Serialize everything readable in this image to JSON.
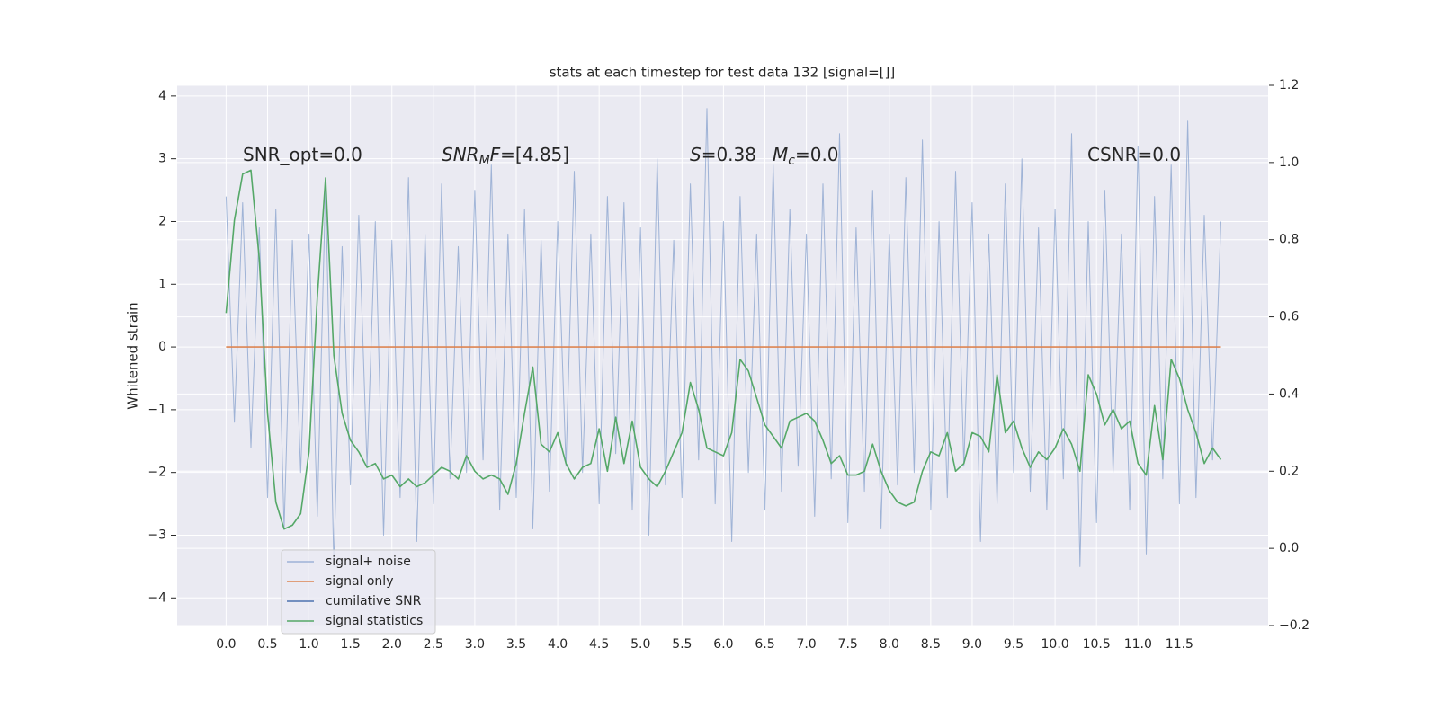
{
  "chart_data": {
    "type": "line",
    "title": "stats at each timestep for test data 132 [signal=[]]",
    "ylabel": "Whitened strain",
    "xlim": [
      -0.59,
      12.57
    ],
    "ylim": [
      -4.44,
      4.17
    ],
    "y2lim": [
      -0.2,
      1.2
    ],
    "xticks": [
      {
        "value": 0,
        "label": "0.0"
      },
      0.5,
      {
        "value": 1,
        "label": "1.0"
      },
      1.5,
      {
        "value": 2,
        "label": "2.0"
      },
      2.5,
      {
        "value": 3,
        "label": "3.0"
      },
      3.5,
      {
        "value": 4,
        "label": "4.0"
      },
      4.5,
      {
        "value": 5,
        "label": "5.0"
      },
      5.5,
      {
        "value": 6,
        "label": "6.0"
      },
      6.5,
      {
        "value": 7,
        "label": "7.0"
      },
      7.5,
      {
        "value": 8,
        "label": "8.0"
      },
      8.5,
      {
        "value": 9,
        "label": "9.0"
      },
      9.5,
      {
        "value": 10,
        "label": "10.0"
      },
      10.5,
      {
        "value": 11,
        "label": "11.0"
      },
      11.5
    ],
    "yticks": [
      {
        "value": -4,
        "label": "−4"
      },
      {
        "value": -3,
        "label": "−3"
      },
      {
        "value": -2,
        "label": "−2"
      },
      {
        "value": -1,
        "label": "−1"
      },
      0,
      1,
      2,
      3,
      4
    ],
    "y2ticks": [
      {
        "value": -0.2,
        "label": "−0.2"
      },
      {
        "value": 0,
        "label": "0.0"
      },
      0.2,
      0.4,
      0.6,
      0.8,
      {
        "value": 1,
        "label": "1.0"
      },
      1.2
    ],
    "grid": true,
    "legend": "lower left",
    "annotations": [
      [
        {
          "text": "SNR_opt=0.0"
        }
      ],
      [
        {
          "text": "SNR",
          "italic": true
        },
        {
          "text": "M",
          "italic": true,
          "sub": true
        },
        {
          "text": "F",
          "italic": true
        },
        {
          "text": "=[4.85]"
        }
      ],
      [
        {
          "text": "S",
          "italic": true
        },
        {
          "text": "=0.38"
        }
      ],
      [
        {
          "text": "M",
          "italic": true
        },
        {
          "text": "c",
          "italic": true,
          "sub": true
        },
        {
          "text": "=0.0"
        }
      ],
      [
        {
          "text": "CSNR=0.0"
        }
      ]
    ],
    "x": [
      0.0,
      0.1,
      0.2,
      0.3,
      0.4,
      0.5,
      0.6,
      0.7,
      0.8,
      0.9,
      1.0,
      1.1,
      1.2,
      1.3,
      1.4,
      1.5,
      1.6,
      1.7,
      1.8,
      1.9,
      2.0,
      2.1,
      2.2,
      2.3,
      2.4,
      2.5,
      2.6,
      2.7,
      2.8,
      2.9,
      3.0,
      3.1,
      3.2,
      3.3,
      3.4,
      3.5,
      3.6,
      3.7,
      3.8,
      3.9,
      4.0,
      4.1,
      4.2,
      4.3,
      4.4,
      4.5,
      4.6,
      4.7,
      4.8,
      4.9,
      5.0,
      5.1,
      5.2,
      5.3,
      5.4,
      5.5,
      5.6,
      5.7,
      5.8,
      5.9,
      6.0,
      6.1,
      6.2,
      6.3,
      6.4,
      6.5,
      6.6,
      6.7,
      6.8,
      6.9,
      7.0,
      7.1,
      7.2,
      7.3,
      7.4,
      7.5,
      7.6,
      7.7,
      7.8,
      7.9,
      8.0,
      8.1,
      8.2,
      8.3,
      8.4,
      8.5,
      8.6,
      8.7,
      8.8,
      8.9,
      9.0,
      9.1,
      9.2,
      9.3,
      9.4,
      9.5,
      9.6,
      9.7,
      9.8,
      9.9,
      10.0,
      10.1,
      10.2,
      10.3,
      10.4,
      10.5,
      10.6,
      10.7,
      10.8,
      10.9,
      11.0,
      11.1,
      11.2,
      11.3,
      11.4,
      11.5,
      11.6,
      11.7,
      11.8,
      11.9,
      12.0
    ],
    "series": [
      {
        "name": "signal+ noise",
        "color": "#7f9bcb",
        "values": [
          2.4,
          -1.2,
          2.3,
          -1.6,
          1.9,
          -2.4,
          2.2,
          -2.9,
          1.7,
          -2.0,
          1.8,
          -2.7,
          2.6,
          -3.5,
          1.6,
          -2.2,
          2.1,
          -1.9,
          2.0,
          -3.0,
          1.7,
          -2.4,
          2.7,
          -3.1,
          1.8,
          -2.5,
          2.6,
          -2.1,
          1.6,
          -2.0,
          2.5,
          -1.8,
          2.9,
          -2.6,
          1.8,
          -2.4,
          2.2,
          -2.9,
          1.7,
          -2.3,
          2.0,
          -1.9,
          2.8,
          -2.0,
          1.8,
          -2.5,
          2.4,
          -1.7,
          2.3,
          -2.6,
          1.9,
          -3.0,
          3.0,
          -2.2,
          1.7,
          -2.4,
          2.6,
          -1.8,
          3.8,
          -2.5,
          2.0,
          -3.1,
          2.4,
          -2.0,
          1.8,
          -2.6,
          2.9,
          -2.3,
          2.2,
          -1.9,
          1.8,
          -2.7,
          2.6,
          -2.1,
          3.4,
          -2.8,
          1.9,
          -2.3,
          2.5,
          -2.9,
          1.8,
          -2.2,
          2.7,
          -2.0,
          3.3,
          -2.6,
          2.0,
          -2.4,
          2.8,
          -1.9,
          2.3,
          -3.1,
          1.8,
          -2.5,
          2.6,
          -2.0,
          3.0,
          -2.3,
          1.9,
          -2.6,
          2.2,
          -2.1,
          3.4,
          -3.5,
          2.0,
          -2.8,
          2.5,
          -2.0,
          1.8,
          -2.6,
          3.2,
          -3.3,
          2.4,
          -2.1,
          2.9,
          -2.5,
          3.6,
          -2.4,
          2.1,
          -1.8,
          2.0
        ]
      },
      {
        "name": "signal only",
        "color": "#dd8452",
        "x": [
          0.0,
          12.0
        ],
        "values": [
          0,
          0
        ]
      },
      {
        "name": "cumilative SNR",
        "color": "#4c72b0",
        "x": [],
        "values": []
      },
      {
        "name": "signal statistics",
        "color": "#55a868",
        "axis": "y2",
        "values": [
          0.61,
          0.85,
          0.97,
          0.98,
          0.75,
          0.35,
          0.12,
          0.05,
          0.06,
          0.09,
          0.25,
          0.65,
          0.96,
          0.5,
          0.35,
          0.28,
          0.25,
          0.21,
          0.22,
          0.18,
          0.19,
          0.16,
          0.18,
          0.16,
          0.17,
          0.19,
          0.21,
          0.2,
          0.18,
          0.24,
          0.2,
          0.18,
          0.19,
          0.18,
          0.14,
          0.22,
          0.35,
          0.47,
          0.27,
          0.25,
          0.3,
          0.22,
          0.18,
          0.21,
          0.22,
          0.31,
          0.2,
          0.34,
          0.22,
          0.33,
          0.21,
          0.18,
          0.16,
          0.2,
          0.25,
          0.3,
          0.43,
          0.36,
          0.26,
          0.25,
          0.24,
          0.3,
          0.49,
          0.46,
          0.39,
          0.32,
          0.29,
          0.26,
          0.33,
          0.34,
          0.35,
          0.33,
          0.28,
          0.22,
          0.24,
          0.19,
          0.19,
          0.2,
          0.27,
          0.2,
          0.15,
          0.12,
          0.11,
          0.12,
          0.2,
          0.25,
          0.24,
          0.3,
          0.2,
          0.22,
          0.3,
          0.29,
          0.25,
          0.45,
          0.3,
          0.33,
          0.26,
          0.21,
          0.25,
          0.23,
          0.26,
          0.31,
          0.27,
          0.2,
          0.45,
          0.4,
          0.32,
          0.36,
          0.31,
          0.33,
          0.22,
          0.19,
          0.37,
          0.23,
          0.49,
          0.44,
          0.36,
          0.3,
          0.22,
          0.26,
          0.23
        ]
      }
    ]
  }
}
